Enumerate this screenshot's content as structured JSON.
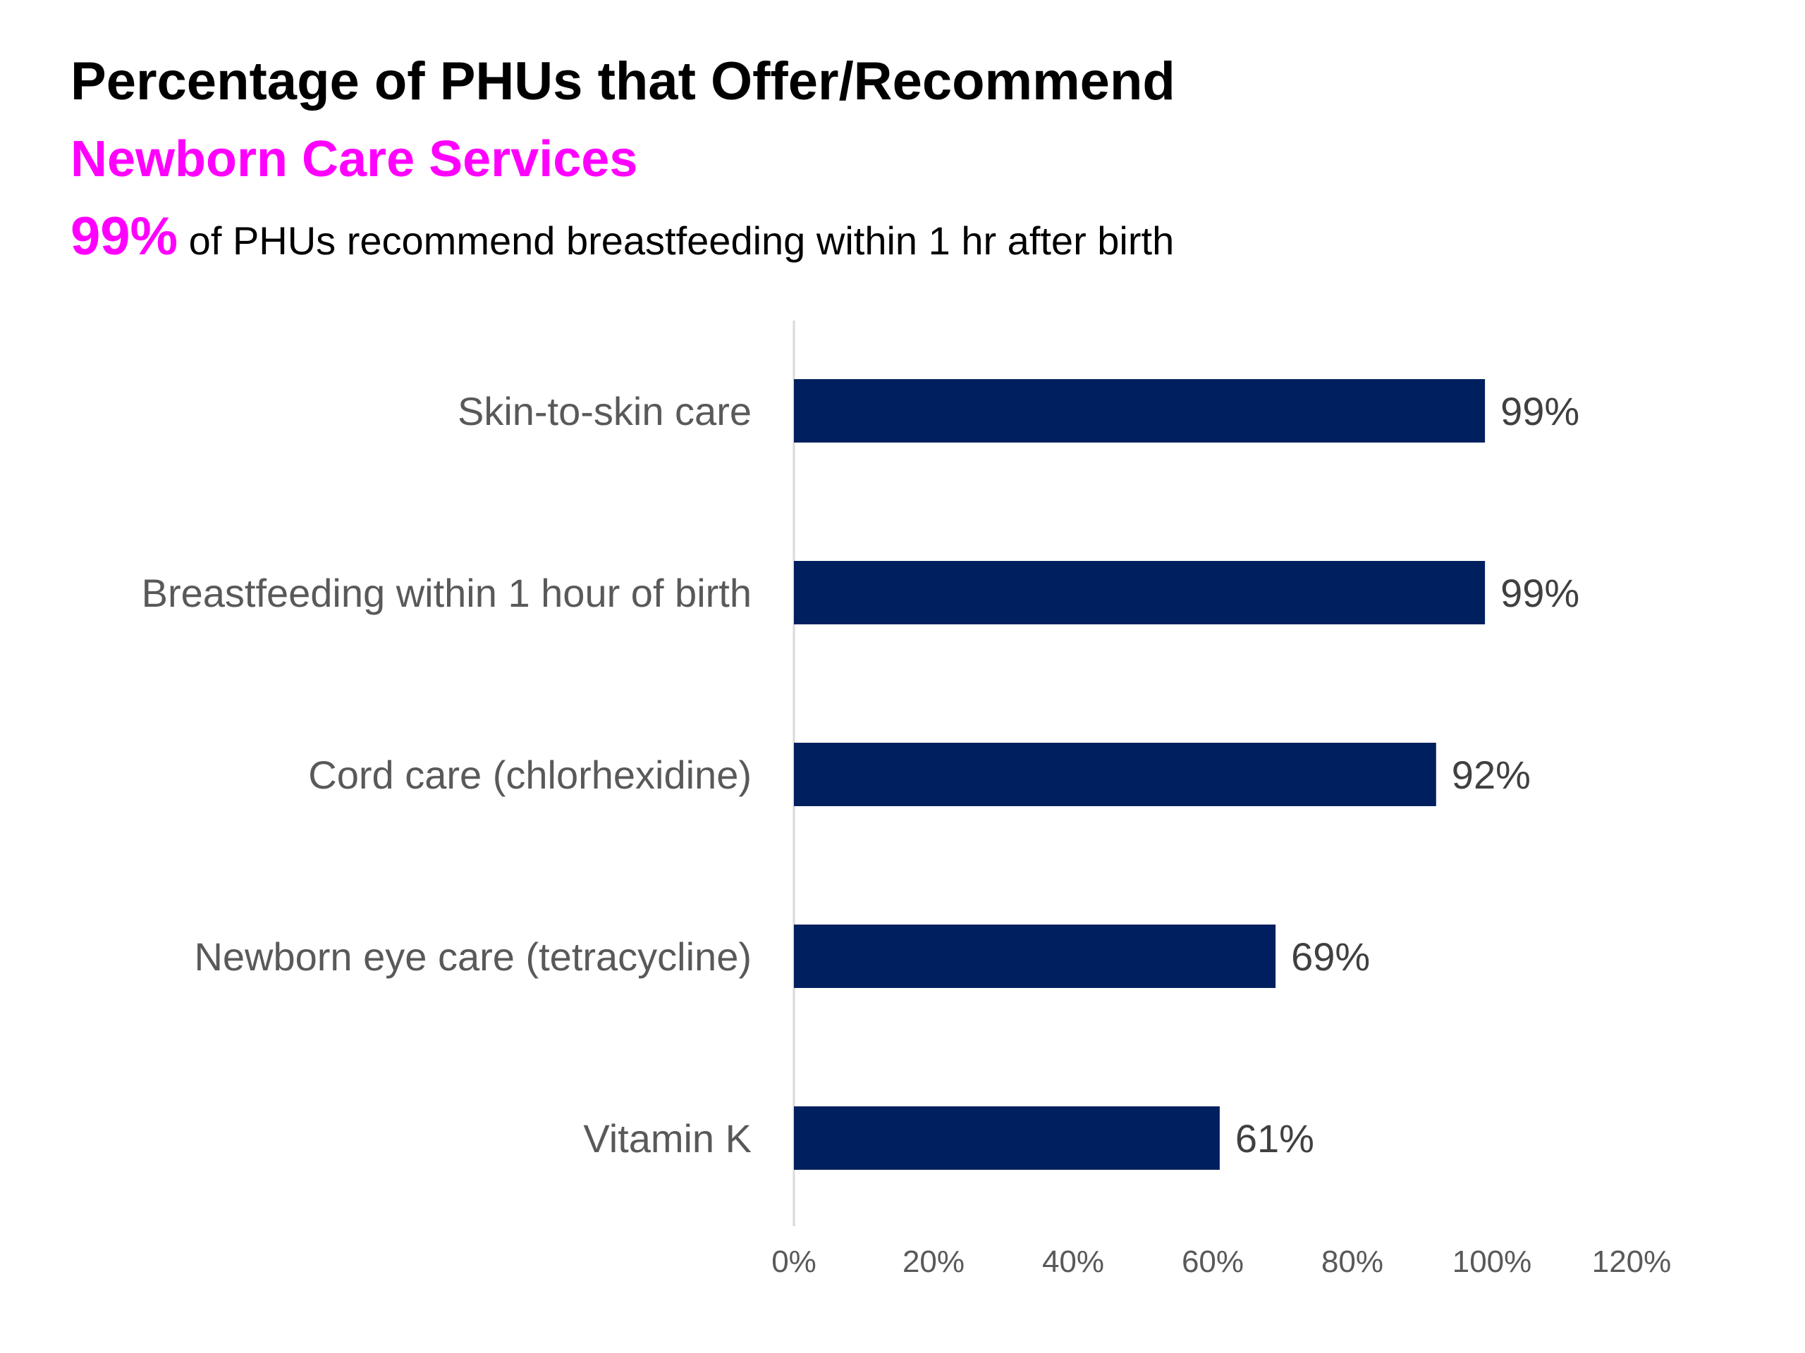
{
  "header": {
    "title": "Percentage of PHUs that Offer/Recommend",
    "subtitle": "Newborn Care Services",
    "highlight_value": "99%",
    "highlight_text": " of PHUs recommend breastfeeding within 1 hr after birth"
  },
  "chart_data": {
    "type": "bar",
    "orientation": "horizontal",
    "categories": [
      "Skin-to-skin care",
      "Breastfeeding within 1 hour of birth",
      "Cord care  (chlorhexidine)",
      "Newborn eye care (tetracycline)",
      "Vitamin K"
    ],
    "values": [
      99,
      99,
      92,
      69,
      61
    ],
    "value_labels": [
      "99%",
      "99%",
      "92%",
      "69%",
      "61%"
    ],
    "xlim": [
      0,
      120
    ],
    "x_ticks": [
      0,
      20,
      40,
      60,
      80,
      100,
      120
    ],
    "x_tick_labels": [
      "0%",
      "20%",
      "40%",
      "60%",
      "80%",
      "100%",
      "120%"
    ],
    "bar_color": "#001f5f",
    "grid": false,
    "legend": "none"
  }
}
